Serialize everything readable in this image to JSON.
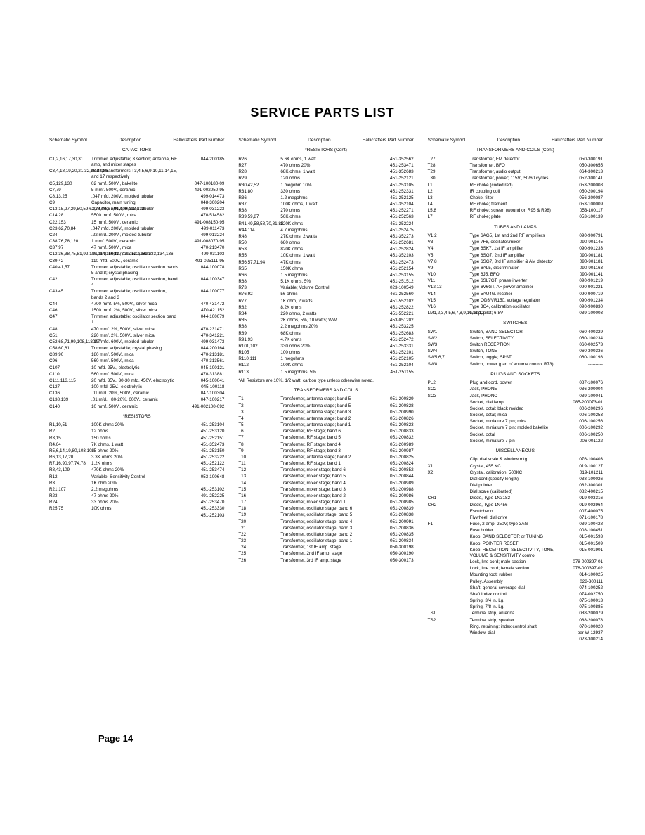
{
  "title": "SERVICE PARTS LIST",
  "header": {
    "sym": "Schematic\nSymbol",
    "desc": "Description",
    "pn": "Hallicrafters\nPart Number"
  },
  "pageNum": "Page 14",
  "sections": {
    "capacitors": "CAPACITORS",
    "resistors": "*RESISTORS",
    "resistorsCont": "*RESISTORS (Cont)",
    "transformers": "TRANSFORMERS AND COILS",
    "transformersCont": "TRANSFORMERS AND COILS (Cont)",
    "tubes": "TUBES AND LAMPS",
    "switches": "SWITCHES",
    "plugs": "PLUGS AND SOCKETS",
    "misc": "MISCELLANEOUS"
  },
  "note": "*All Resistors are 10%, 1/2 watt, carbon type unless otherwise noted.",
  "col1": [
    {
      "s": "C1,2,16,17,30,31",
      "d": "Trimmer, adjustable; 3 section; antenna, RF amp, and mixer stages",
      "p": "044-200185"
    },
    {
      "s": "C3,4,18,19,20,21,32,33,34,35",
      "d": "Part of transformers T3,4,5,6,9,10,11,14,15, and 17 respectively",
      "p": "----------"
    },
    {
      "s": "C5,129,130",
      "d": "02 mmf. 500V., bakelite",
      "p": "047-100180-09"
    },
    {
      "s": "C7,79",
      "d": "5 mmf. 500V., ceramic",
      "p": "491-002050-95"
    },
    {
      "s": "C8,13,25",
      "d": ".047 mfd. 200V., molded tubular",
      "p": "499-014473"
    },
    {
      "s": "C9",
      "d": "Capacitor, main tuning",
      "p": "048-300204"
    },
    {
      "s": "C13,15,27,29,50,59,63,74,86,87,91,109,112,132",
      "d": ".022 mfd. 600V., molded tubular",
      "p": "499-031223"
    },
    {
      "s": "C14,28",
      "d": "5500 mmf. 500V., mica",
      "p": "470-514582"
    },
    {
      "s": "C22,153",
      "d": "15 mmf. 500V., ceramic",
      "p": "491-008150-95"
    },
    {
      "s": "C23,62,70,84",
      "d": ".047 mfd. 200V., molded tubular",
      "p": "499-011473"
    },
    {
      "s": "C24",
      "d": ".22 mfd. 200V., molded tubular",
      "p": "499-013224"
    },
    {
      "s": "C38,76,78,120",
      "d": "1 mmf. 500V., ceramic",
      "p": "491-008070-95"
    },
    {
      "s": "C37,97",
      "d": "47 mmf. 500V., mica",
      "p": "470-213470"
    },
    {
      "s": "C12,36,38,75,81,92,106,114,116,117,121,122,131,133,134,136",
      "d": ".01 mfd. 600V., molded tubular",
      "p": "499-031103"
    },
    {
      "s": "C39,42",
      "d": "110 mfd. 500V., ceramic",
      "p": "491-025111-95"
    },
    {
      "s": "C40,41,57",
      "d": "Trimmer, adjustable; oscillator section bands 5 and 8; crystal phasing",
      "p": "044-100078"
    },
    {
      "s": "C42",
      "d": "Trimmer, adjustable; oscillator section, band 4",
      "p": "044-100347"
    },
    {
      "s": "C43,45",
      "d": "Trimmer, adjustable; oscillator section, bands 2 and 3",
      "p": "044-100077"
    },
    {
      "s": "C44",
      "d": "4700 mmf. 5%, 500V., silver mica",
      "p": "470-431472"
    },
    {
      "s": "C46",
      "d": "1500 mmf. 2%, 500V., silver mica",
      "p": "470-421152"
    },
    {
      "s": "C47",
      "d": "Trimmer, adjustable; oscillator section band 1",
      "p": "044-100079"
    },
    {
      "s": "C48",
      "d": "470 mmf. 2%, 500V., silver mica",
      "p": "470-231471"
    },
    {
      "s": "C51",
      "d": "220 mmf. 2%, 500V., silver mica",
      "p": "470-341221"
    },
    {
      "s": "C52,68,71,99,108,118,137",
      "d": ".047 mfd. 600V., molded tubular",
      "p": "499-031473"
    },
    {
      "s": "C58,60,61",
      "d": "Trimmer, adjustable; crystal phasing",
      "p": "044-200164"
    },
    {
      "s": "C89,90",
      "d": "180 mmf. 500V., mica",
      "p": "470-213181"
    },
    {
      "s": "C96",
      "d": "560 mmf. 500V., mica",
      "p": "470-313561"
    },
    {
      "s": "C107",
      "d": "10 mfd. 25V., electrolytic",
      "p": "045-100121"
    },
    {
      "s": "C110",
      "d": "560 mmf. 500V., mica",
      "p": "470-313881"
    },
    {
      "s": "C111,113,115",
      "d": "20 mfd. 35V., 30-30 mfd. 450V. electrolytic",
      "p": "045-100041"
    },
    {
      "s": "C127",
      "d": "100 mfd. 25V., electrolytic",
      "p": "045-100118"
    },
    {
      "s": "C136",
      "d": ".01 mfd. 20%, 500V., ceramic",
      "p": "047-100304"
    },
    {
      "s": "C138,139",
      "d": ".01 mfd. +80-20%, 600V., ceramic",
      "p": "047-100217"
    },
    {
      "s": "C140",
      "d": "10 mmf. 500V., ceramic",
      "p": "491-002100-092"
    }
  ],
  "col1res": [
    {
      "s": "R1,10,51",
      "d": "100K ohms 20%",
      "p": "451-253104"
    },
    {
      "s": "R2",
      "d": "12 ohms",
      "p": "451-253120"
    },
    {
      "s": "R3,15",
      "d": "150 ohms",
      "p": "451-252151"
    },
    {
      "s": "R4,64",
      "d": "7K ohms, 1 watt",
      "p": "451-352473"
    },
    {
      "s": "R5,6,14,19,80,103,104",
      "d": "15 ohms 20%",
      "p": "451-253150"
    },
    {
      "s": "R6,13,17,20",
      "d": "3.3K ohms 20%",
      "p": "451-253222"
    },
    {
      "s": "R7,16,90,97,74,78",
      "d": "1.2K ohms",
      "p": "451-252122"
    },
    {
      "s": "R8,43,109",
      "d": "470K ohms 20%",
      "p": "451-253474"
    },
    {
      "s": "R12",
      "d": "Variable, Sensitivity Control",
      "p": "053-100648"
    },
    {
      "s": "R3",
      "d": "1K ohm 20%",
      "p": ""
    },
    {
      "s": "R21,107",
      "d": "2.2 megohms",
      "p": "451-253102"
    },
    {
      "s": "R23",
      "d": "47 ohms 20%",
      "p": "491-252225"
    },
    {
      "s": "R24",
      "d": "33 ohms 20%",
      "p": "451-253470"
    },
    {
      "s": "R25,75",
      "d": "10K ohms",
      "p": "451-253330"
    },
    {
      "s": "",
      "d": "",
      "p": "451-252103"
    }
  ],
  "col2": [
    {
      "s": "R26",
      "d": "5.6K ohms, 1 watt",
      "p": "451-352562"
    },
    {
      "s": "R27",
      "d": "470 ohms 20%",
      "p": "451-253471"
    },
    {
      "s": "R28",
      "d": "68K ohms, 1 watt",
      "p": "451-352683"
    },
    {
      "s": "R29",
      "d": "120 ohms",
      "p": "451-252121"
    },
    {
      "s": "R30,42,52",
      "d": "1 megohm 10%",
      "p": "451-253105"
    },
    {
      "s": "R31,80",
      "d": "330 ohms",
      "p": "451-252331"
    },
    {
      "s": "R36",
      "d": "1.2 megohms",
      "p": "451-252125"
    },
    {
      "s": "R37",
      "d": "100K ohms, 1 watt",
      "p": "451-352104"
    },
    {
      "s": "R38",
      "d": "270 ohms",
      "p": "451-252271"
    },
    {
      "s": "R39,59,87",
      "d": "56K ohms",
      "p": "451-252563"
    },
    {
      "s": "R41,49,58,58,70,81,85",
      "d": "220K ohms",
      "p": "451-252224"
    },
    {
      "s": "R44,114",
      "d": "4.7 megohms",
      "p": "451-252475"
    },
    {
      "s": "R48",
      "d": "27K ohms, 2 watts",
      "p": "451-352273"
    },
    {
      "s": "R50",
      "d": "680 ohms",
      "p": "451-252681"
    },
    {
      "s": "R53",
      "d": "820K ohms",
      "p": "451-252824"
    },
    {
      "s": "R55",
      "d": "10K ohms, 1 watt",
      "p": "451-352103"
    },
    {
      "s": "R56,57,71,94",
      "d": "47K ohms",
      "p": "451-252473"
    },
    {
      "s": "R65",
      "d": "150K ohms",
      "p": "451-252154"
    },
    {
      "s": "R66",
      "d": "1.5 megohms",
      "p": "451-253155"
    },
    {
      "s": "R68",
      "d": "5.1K ohms, 5%",
      "p": "451-251512"
    },
    {
      "s": "R73",
      "d": "Variable; Volume Control",
      "p": "023-100549"
    },
    {
      "s": "R76,92",
      "d": "56 ohms",
      "p": "461-252560"
    },
    {
      "s": "R77",
      "d": "1K ohm, 2 watts",
      "p": "451-552102"
    },
    {
      "s": "R82",
      "d": "8.2K ohms",
      "p": "451-252822"
    },
    {
      "s": "R84",
      "d": "220 ohms, 2 watts",
      "p": "451-552221"
    },
    {
      "s": "R85",
      "d": "2K ohms, 5%, 10 watts; WW",
      "p": "453-051202"
    },
    {
      "s": "R88",
      "d": "2.2 megohms 20%",
      "p": "451-253225"
    },
    {
      "s": "R89",
      "d": "68K ohms",
      "p": "451-252683"
    },
    {
      "s": "R91,93",
      "d": "4.7K ohms",
      "p": "451-252472"
    },
    {
      "s": "R101,102",
      "d": "330 ohms 20%",
      "p": "451-253331"
    },
    {
      "s": "R105",
      "d": "100 ohms",
      "p": "451-252101"
    },
    {
      "s": "R110,111",
      "d": "1 megohms",
      "p": "451-252105"
    },
    {
      "s": "R112",
      "d": "100K ohms",
      "p": "451-252104"
    },
    {
      "s": "R113",
      "d": "1.5 megohms, 5%",
      "p": "451-251155"
    }
  ],
  "col2tx": [
    {
      "s": "T1",
      "d": "Transformer, antenna stage; band 5",
      "p": "051-200829"
    },
    {
      "s": "T2",
      "d": "Transformer, antenna stage; band 5",
      "p": "051-200828"
    },
    {
      "s": "T3",
      "d": "Transformer, antenna stage; band 3",
      "p": "051-200990"
    },
    {
      "s": "T4",
      "d": "Transformer, antenna stage; band 2",
      "p": "051-200826"
    },
    {
      "s": "T5",
      "d": "Transformer, antenna stage; band 1",
      "p": "051-200823"
    },
    {
      "s": "T6",
      "d": "Transformer, RF stage; band 6",
      "p": "051-200833"
    },
    {
      "s": "T7",
      "d": "Transformer, RF stage; band 5",
      "p": "051-200832"
    },
    {
      "s": "T8",
      "d": "Transformer, RF stage; band 4",
      "p": "051-200989"
    },
    {
      "s": "T9",
      "d": "Transformer, RF stage; band 3",
      "p": "051-200987"
    },
    {
      "s": "T10",
      "d": "Transformer, antenna stage; band 2",
      "p": "051-200825"
    },
    {
      "s": "T11",
      "d": "Transformer, RF stage; band 1",
      "p": "051-200824"
    },
    {
      "s": "T12",
      "d": "Transformer, mixer stage; band 6",
      "p": "051-200852"
    },
    {
      "s": "T13",
      "d": "Transformer, mixer stage; band 5",
      "p": "051-200844"
    },
    {
      "s": "T14",
      "d": "Transformer, mixer stage; band 4",
      "p": "051-200989"
    },
    {
      "s": "T15",
      "d": "Transformer, mixer stage; band 3",
      "p": "051-200988"
    },
    {
      "s": "T16",
      "d": "Transformer, mixer stage; band 2",
      "p": "051-200986"
    },
    {
      "s": "T17",
      "d": "Transformer, mixer stage; band 1",
      "p": "051-200985"
    },
    {
      "s": "T18",
      "d": "Transformer, oscillator stage; band 6",
      "p": "051-200839"
    },
    {
      "s": "T19",
      "d": "Transformer, oscillator stage; band 5",
      "p": "051-200838"
    },
    {
      "s": "T20",
      "d": "Transformer, oscillator stage; band 4",
      "p": "051-200991"
    },
    {
      "s": "T21",
      "d": "Transformer, oscillator stage; band 3",
      "p": "051-200836"
    },
    {
      "s": "T22",
      "d": "Transformer, oscillator stage; band 2",
      "p": "051-200835"
    },
    {
      "s": "T23",
      "d": "Transformer, oscillator stage; band 1",
      "p": "051-200834"
    },
    {
      "s": "T24",
      "d": "Transformer, 1st IF amp. stage",
      "p": "050-300198"
    },
    {
      "s": "T25",
      "d": "Transformer, 2nd IF amp. stage",
      "p": "050-300190"
    },
    {
      "s": "T26",
      "d": "Transformer, 3rd IF amp. stage",
      "p": "050-300173"
    }
  ],
  "col3tx": [
    {
      "s": "T27",
      "d": "Transformer, FM detector",
      "p": "050-300191"
    },
    {
      "s": "T28",
      "d": "Transformer, BFO",
      "p": "050-300655"
    },
    {
      "s": "T29",
      "d": "Transformer, audio output",
      "p": "064-300213"
    },
    {
      "s": "T30",
      "d": "Transformer, power; 115V., 50/60 cycles",
      "p": "052-300141"
    },
    {
      "s": "L1",
      "d": "RF choke (coded red)",
      "p": "053-200008"
    },
    {
      "s": "L2",
      "d": "IR coupling coil",
      "p": "050-200194"
    },
    {
      "s": "L3",
      "d": "Choke, filter",
      "p": "056-200087"
    },
    {
      "s": "L4",
      "d": "RF choke; filament",
      "p": "053-100009"
    },
    {
      "s": "L5,8",
      "d": "RF choke; screen (wound on R95 & R98)",
      "p": "053-100117"
    },
    {
      "s": "L7",
      "d": "RF choke; plate",
      "p": "053-100139"
    }
  ],
  "col3tubes": [
    {
      "s": "V1,2",
      "d": "Type 6AG5, 1st and 2nd RF amplifiers",
      "p": "090-900791"
    },
    {
      "s": "V3",
      "d": "Type 7F8, oscillator/mixer",
      "p": "090-901145"
    },
    {
      "s": "V4",
      "d": "Type 6SK7, 1st IF amplifier",
      "p": "090-901233"
    },
    {
      "s": "V5",
      "d": "Type 6SG7, 2nd IF amplifier",
      "p": "090-901181"
    },
    {
      "s": "V7,8",
      "d": "Type 6SG7, 3rd IF amplifier & AM detector",
      "p": "090-901181"
    },
    {
      "s": "V9",
      "d": "Type 6AL5, discriminator",
      "p": "090-901163"
    },
    {
      "s": "V10",
      "d": "Type 6J5, BFO",
      "p": "090-901141"
    },
    {
      "s": "V11",
      "d": "Type 6SL7GT, phase inverter",
      "p": "090-901219"
    },
    {
      "s": "V12,13",
      "d": "Type 6V6GT, AF power amplifier",
      "p": "090-901221"
    },
    {
      "s": "V14",
      "d": "Type 5AU4G. rectifier",
      "p": "090-900719"
    },
    {
      "s": "V15",
      "d": "Type OD3/VR150, voltage regulator",
      "p": "090-901234"
    },
    {
      "s": "V16",
      "d": "Type 3C4, calibration oscillator",
      "p": "090-900830"
    },
    {
      "s": "LM1,2,3,4,5,6,7,8,9,10,11,12",
      "d": "Lamp, pilot; 6-8V",
      "p": "039-100003"
    }
  ],
  "col3sw": [
    {
      "s": "SW1",
      "d": "Switch, BAND SELECTOR",
      "p": "060-400329"
    },
    {
      "s": "SW2",
      "d": "Switch, SELECTIVITY",
      "p": "060-100234"
    },
    {
      "s": "SW3",
      "d": "Switch RECEPTION",
      "p": "060-002573"
    },
    {
      "s": "SW4",
      "d": "Switch, TONE",
      "p": "060-300336"
    },
    {
      "s": "SW5,6,7",
      "d": "Switch, toggle; SPST",
      "p": "060-100198"
    },
    {
      "s": "SW8",
      "d": "Switch, power (part of volume control R73)",
      "p": "----------"
    }
  ],
  "col3plugs": [
    {
      "s": "PL2",
      "d": "Plug and cord, power",
      "p": "087-100076"
    },
    {
      "s": "SO2",
      "d": "Jack, PHONE",
      "p": "036-200004"
    },
    {
      "s": "SO3",
      "d": "Jack, PHONO",
      "p": "039-100041"
    },
    {
      "s": "",
      "d": "Socket, dial lamp",
      "p": "085-200073-01"
    },
    {
      "s": "",
      "d": "Socket, octal; black molded",
      "p": "006-200296"
    },
    {
      "s": "",
      "d": "Socket, octal; mica",
      "p": "006-100253"
    },
    {
      "s": "",
      "d": "Socket, miniature 7 pin; mica",
      "p": "006-100256"
    },
    {
      "s": "",
      "d": "Socket, miniature 7 pin; molded bakelite",
      "p": "006-100292"
    },
    {
      "s": "",
      "d": "Socket, octal",
      "p": "006-100250"
    },
    {
      "s": "",
      "d": "Socket, miniature 7 pin",
      "p": "006-001122"
    }
  ],
  "col3misc": [
    {
      "s": "",
      "d": "Clip, dial scale & window mtg.",
      "p": "076-100403"
    },
    {
      "s": "X1",
      "d": "Crystal, 455 KC",
      "p": "019-100127"
    },
    {
      "s": "X2",
      "d": "Crystal, calibration; 500KC",
      "p": "019-101211"
    },
    {
      "s": "",
      "d": "Dial cord (specify length)",
      "p": "038-100026"
    },
    {
      "s": "",
      "d": "Dial pointer",
      "p": "082-300301"
    },
    {
      "s": "",
      "d": "Dial scale (calibrated)",
      "p": "082-400215"
    },
    {
      "s": "CR1",
      "d": "Diode, Type 1N3182",
      "p": "019-003316"
    },
    {
      "s": "CR2",
      "d": "Diode, Type 1N456",
      "p": "019-002964"
    },
    {
      "s": "",
      "d": "Escutcheon",
      "p": "007-400075"
    },
    {
      "s": "",
      "d": "Flywheel, dial drive",
      "p": "071-100178"
    },
    {
      "s": "F1",
      "d": "Fuse, 2 amp, 250V; type 3AG",
      "p": "039-100428"
    },
    {
      "s": "",
      "d": "Fuse holder",
      "p": "008-100451"
    },
    {
      "s": "",
      "d": "Knob, BAND SELECTOR or TUNING",
      "p": "015-001593"
    },
    {
      "s": "",
      "d": "Knob, POINTER RESET",
      "p": "015-001509"
    },
    {
      "s": "",
      "d": "Knob, RECEPTION, SELECTIVITY, TONE, VOLUME & SENSITIVITY control",
      "p": "015-001901"
    },
    {
      "s": "",
      "d": "Lock, line cord; male section",
      "p": "078-000397-01"
    },
    {
      "s": "",
      "d": "Lock, line cord; female section",
      "p": "078-000397-02"
    },
    {
      "s": "",
      "d": "Mounting foot; rubber",
      "p": "014-100025"
    },
    {
      "s": "",
      "d": "Pulley, Assembly",
      "p": "028-300111"
    },
    {
      "s": "",
      "d": "Shaft, general coverage dial",
      "p": "074-100252"
    },
    {
      "s": "",
      "d": "Shaft index control",
      "p": "074-002750"
    },
    {
      "s": "",
      "d": "Spring, 3/4 in. Lg.",
      "p": "075-100013"
    },
    {
      "s": "",
      "d": "Spring, 7/8 in. Lg.",
      "p": "075-100885"
    },
    {
      "s": "TS1",
      "d": "Terminal strip, antenna",
      "p": "088-200079"
    },
    {
      "s": "TS2",
      "d": "Terminal strip, speaker",
      "p": "088-200078"
    },
    {
      "s": "",
      "d": "Ring, retaining; index control shaft",
      "p": "070-100020"
    },
    {
      "s": "",
      "d": "Window, dial",
      "p": "per W-12937"
    },
    {
      "s": "",
      "d": "",
      "p": "023-300214"
    }
  ]
}
